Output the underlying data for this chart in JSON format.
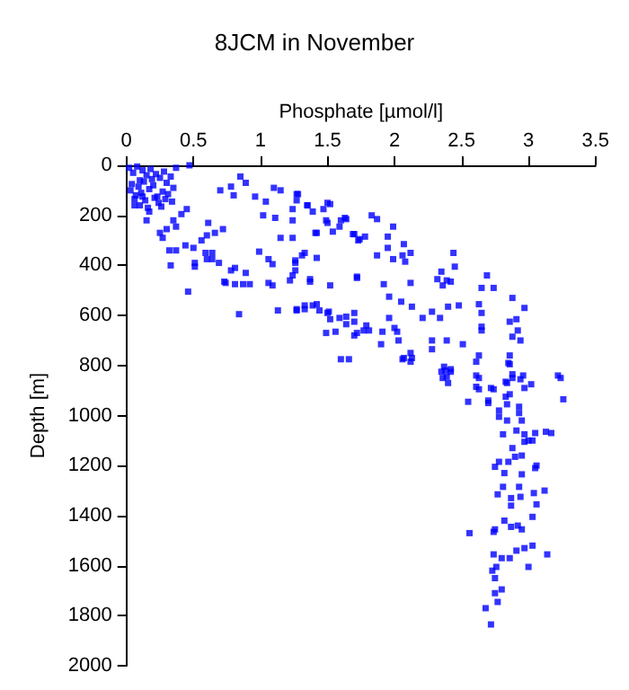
{
  "chart_data": {
    "type": "scatter",
    "title": "8JCM in November",
    "xlabel": "Phosphate [µmol/l]",
    "ylabel": "Depth [m]",
    "xlim": [
      0,
      3.5
    ],
    "xticks": [
      0,
      0.5,
      1,
      1.5,
      2,
      2.5,
      3,
      3.5
    ],
    "ylim": [
      2000,
      0
    ],
    "yticks": [
      0,
      200,
      400,
      600,
      800,
      1000,
      1200,
      1400,
      1600,
      1800,
      2000
    ],
    "marker": "square",
    "series": [
      {
        "color": "#0000ff",
        "x": [
          0.02,
          0.05,
          0.08,
          0.1,
          0.12,
          0.15,
          0.18,
          0.2,
          0.22,
          0.25,
          0.28,
          0.3,
          0.33,
          0.35,
          0.03,
          0.07,
          0.11,
          0.14,
          0.17,
          0.21,
          0.24,
          0.27,
          0.31,
          0.04,
          0.09,
          0.13,
          0.19,
          0.23,
          0.29,
          0.34,
          0.06,
          0.16,
          0.26,
          0.47,
          0.37,
          0.15,
          0.17,
          0.25,
          0.27,
          0.3,
          0.35,
          0.41,
          0.45,
          0.37,
          0.32,
          0.1,
          0.06,
          0.12,
          0.7,
          0.78,
          0.85,
          0.89,
          0.8,
          0.96,
          1.1,
          1.15,
          1.04,
          1.27,
          1.27,
          1.35,
          1.5,
          1.49,
          1.42,
          1.63,
          1.59,
          1.7,
          1.74,
          1.11,
          1.02,
          1.24,
          1.15,
          1.24,
          1.06,
          0.99,
          1.09,
          1.26,
          1.26,
          1.31,
          1.37,
          1.22,
          1.09,
          1.06,
          0.92,
          0.87,
          0.81,
          0.74,
          0.73,
          0.78,
          0.89,
          0.81,
          0.69,
          0.64,
          0.6,
          0.51,
          0.51,
          0.59,
          0.5,
          0.44,
          0.37,
          0.33,
          0.46,
          0.64,
          0.72,
          0.66,
          0.61,
          0.6,
          0.56,
          0.84,
          1.13,
          1.27,
          1.33,
          1.42,
          1.51,
          1.52,
          1.49,
          1.64,
          1.64,
          1.6,
          1.7,
          1.77,
          1.72,
          1.28,
          1.24,
          1.35,
          1.39,
          1.47,
          1.52,
          1.5,
          1.41,
          1.54,
          1.6,
          1.64,
          1.69,
          1.73,
          1.78,
          1.83,
          1.87,
          1.99,
          1.95,
          1.95,
          2.07,
          2.06,
          2.12,
          1.99,
          2.08,
          1.87,
          1.33,
          1.42,
          1.26,
          1.24,
          1.37,
          1.52,
          1.72,
          1.92,
          2.12,
          1.96,
          2.05,
          2.13,
          2.44,
          2.45,
          2.35,
          2.32,
          2.39,
          2.36,
          2.42,
          2.48,
          2.4,
          2.28,
          2.21,
          2.34,
          2.69,
          2.65,
          2.74,
          2.63,
          2.65,
          2.65,
          2.65,
          2.88,
          2.97,
          2.91,
          2.86,
          2.92,
          2.88,
          2.94,
          2.86,
          2.86,
          2.63,
          2.88,
          2.94,
          2.97,
          3.24,
          2.84,
          2.63,
          2.63,
          2.74,
          2.38,
          2.42,
          2.36,
          2.4,
          2.28,
          2.28,
          2.39,
          2.51,
          2.12,
          2.07,
          2.13,
          2.03,
          2.0,
          2.02,
          1.91,
          1.96,
          1.9,
          1.79,
          1.81,
          1.72,
          1.7,
          1.7,
          1.66,
          1.56,
          1.59,
          1.27,
          1.33,
          1.39,
          1.44,
          1.5,
          2.06,
          2.12,
          2.37,
          2.42,
          2.61,
          2.85,
          2.35,
          2.39,
          2.61,
          2.88,
          2.96,
          3.02,
          3.22,
          2.83,
          2.61,
          2.72,
          2.86,
          2.83,
          2.55,
          2.7,
          2.7,
          3.26,
          2.84,
          2.93,
          2.93,
          2.78,
          2.78,
          2.84,
          2.95,
          2.91,
          2.97,
          3.05,
          3.13,
          3.17,
          2.81,
          3.0,
          2.97,
          3.03,
          2.88,
          2.9,
          2.95,
          2.85,
          2.78,
          2.75,
          3.06,
          3.05,
          2.82,
          2.95,
          2.81,
          2.93,
          2.77,
          2.94,
          2.87,
          3.04,
          3.12,
          2.87,
          3.06,
          3.03,
          2.82,
          2.92,
          2.87,
          2.95,
          2.75,
          2.74,
          2.56,
          3.03,
          2.97,
          2.91,
          3.14,
          2.74,
          2.8,
          2.86,
          3.0,
          2.76,
          2.73,
          2.75,
          2.8,
          2.75,
          2.77,
          2.68,
          2.72
        ],
        "values": [
          10,
          30,
          5,
          60,
          20,
          40,
          15,
          80,
          35,
          50,
          25,
          70,
          45,
          90,
          100,
          120,
          110,
          140,
          95,
          130,
          150,
          105,
          115,
          75,
          85,
          65,
          55,
          125,
          135,
          145,
          160,
          170,
          165,
          0,
          10,
          220,
          185,
          270,
          290,
          255,
          220,
          195,
          175,
          245,
          340,
          160,
          135,
          125,
          100,
          85,
          45,
          70,
          120,
          125,
          90,
          100,
          145,
          115,
          140,
          160,
          150,
          220,
          270,
          210,
          245,
          275,
          295,
          210,
          200,
          220,
          290,
          290,
          375,
          345,
          395,
          380,
          420,
          360,
          455,
          460,
          480,
          470,
          475,
          475,
          475,
          470,
          465,
          420,
          430,
          410,
          390,
          375,
          375,
          390,
          405,
          350,
          330,
          320,
          340,
          400,
          505,
          350,
          255,
          270,
          230,
          280,
          300,
          595,
          580,
          575,
          560,
          555,
          585,
          615,
          670,
          605,
          635,
          775,
          680,
          660,
          445,
          115,
          175,
          160,
          185,
          175,
          155,
          230,
          270,
          265,
          220,
          215,
          275,
          300,
          285,
          200,
          215,
          245,
          285,
          330,
          315,
          360,
          350,
          375,
          385,
          360,
          350,
          370,
          390,
          440,
          465,
          480,
          450,
          475,
          470,
          525,
          545,
          565,
          350,
          405,
          425,
          455,
          460,
          480,
          465,
          560,
          565,
          585,
          610,
          610,
          440,
          490,
          490,
          555,
          590,
          645,
          660,
          530,
          570,
          615,
          625,
          660,
          685,
          700,
          760,
          795,
          760,
          850,
          855,
          890,
          850,
          870,
          850,
          895,
          895,
          820,
          825,
          850,
          870,
          700,
          735,
          700,
          715,
          750,
          770,
          770,
          700,
          650,
          665,
          665,
          610,
          715,
          640,
          660,
          670,
          590,
          625,
          775,
          665,
          610,
          580,
          575,
          560,
          580,
          590,
          775,
          785,
          805,
          815,
          785,
          790,
          825,
          845,
          840,
          835,
          840,
          875,
          840,
          865,
          885,
          890,
          915,
          925,
          945,
          940,
          950,
          935,
          955,
          965,
          990,
          980,
          1005,
          1020,
          1020,
          1060,
          1075,
          1070,
          1065,
          1070,
          1075,
          1100,
          1105,
          1100,
          1130,
          1165,
          1160,
          1185,
          1185,
          1205,
          1200,
          1210,
          1230,
          1235,
          1285,
          1285,
          1315,
          1325,
          1330,
          1310,
          1300,
          1360,
          1355,
          1405,
          1420,
          1440,
          1445,
          1455,
          1455,
          1465,
          1470,
          1520,
          1530,
          1540,
          1555,
          1555,
          1570,
          1570,
          1605,
          1605,
          1620,
          1650,
          1695,
          1710,
          1745,
          1770,
          1835
        ]
      }
    ]
  }
}
